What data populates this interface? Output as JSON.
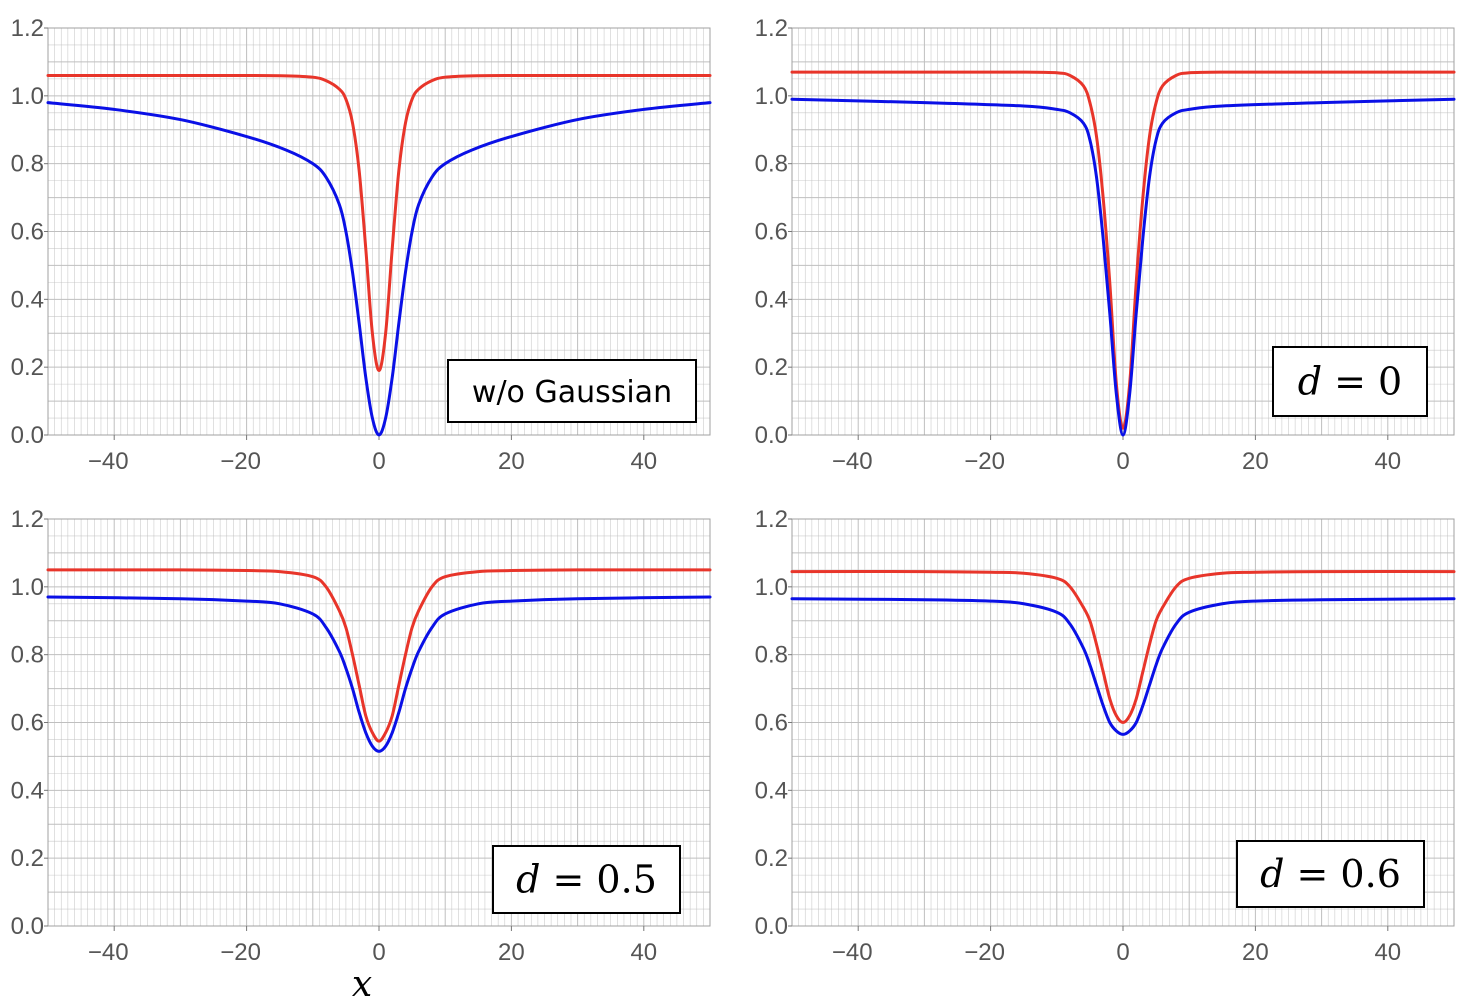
{
  "colors": {
    "red_series": "#e8352a",
    "blue_series": "#0a10e6",
    "grid": "#bfbfbf",
    "frame": "#a0a0a0"
  },
  "x_axis_label": "x",
  "chart_data": [
    {
      "type": "line",
      "annotation": "w/o Gaussian",
      "xlim": [
        -50,
        50
      ],
      "ylim": [
        0,
        1.2
      ],
      "xticks": [
        "−40",
        "−20",
        "0",
        "20",
        "40"
      ],
      "yticks": [
        "0.0",
        "0.2",
        "0.4",
        "0.6",
        "0.8",
        "1.0",
        "1.2"
      ],
      "series": [
        {
          "color": "red",
          "x": [
            -50,
            -40,
            -30,
            -20,
            -14,
            -10,
            -8,
            -6,
            -5,
            -4,
            -3,
            -2,
            -1,
            0,
            1,
            2,
            3,
            4,
            5,
            6,
            8,
            10,
            14,
            20,
            30,
            40,
            50
          ],
          "y": [
            1.06,
            1.06,
            1.06,
            1.06,
            1.059,
            1.055,
            1.045,
            1.02,
            0.99,
            0.92,
            0.78,
            0.55,
            0.3,
            0.19,
            0.3,
            0.55,
            0.78,
            0.92,
            0.99,
            1.02,
            1.045,
            1.055,
            1.059,
            1.06,
            1.06,
            1.06,
            1.06
          ]
        },
        {
          "color": "blue",
          "x": [
            -50,
            -40,
            -30,
            -20,
            -14,
            -10,
            -8,
            -6,
            -5,
            -4,
            -3,
            -2,
            -1,
            0,
            1,
            2,
            3,
            4,
            5,
            6,
            8,
            10,
            14,
            20,
            30,
            40,
            50
          ],
          "y": [
            0.98,
            0.96,
            0.93,
            0.88,
            0.84,
            0.8,
            0.76,
            0.68,
            0.6,
            0.48,
            0.33,
            0.17,
            0.05,
            0.0,
            0.05,
            0.17,
            0.33,
            0.48,
            0.6,
            0.68,
            0.76,
            0.8,
            0.84,
            0.88,
            0.93,
            0.96,
            0.98
          ]
        }
      ]
    },
    {
      "type": "line",
      "annotation": "d = 0",
      "xlim": [
        -50,
        50
      ],
      "ylim": [
        0,
        1.2
      ],
      "xticks": [
        "−40",
        "−20",
        "0",
        "20",
        "40"
      ],
      "yticks": [
        "0.0",
        "0.2",
        "0.4",
        "0.6",
        "0.8",
        "1.0",
        "1.2"
      ],
      "series": [
        {
          "color": "red",
          "x": [
            -50,
            -30,
            -15,
            -10,
            -8,
            -6,
            -5,
            -4,
            -3,
            -2,
            -1,
            0,
            1,
            2,
            3,
            4,
            5,
            6,
            8,
            10,
            15,
            30,
            50
          ],
          "y": [
            1.07,
            1.07,
            1.07,
            1.068,
            1.06,
            1.03,
            0.98,
            0.88,
            0.7,
            0.45,
            0.15,
            0.02,
            0.15,
            0.45,
            0.7,
            0.88,
            0.98,
            1.03,
            1.06,
            1.068,
            1.07,
            1.07,
            1.07
          ]
        },
        {
          "color": "blue",
          "x": [
            -50,
            -30,
            -15,
            -10,
            -8,
            -6,
            -5,
            -4,
            -3,
            -2,
            -1,
            0,
            1,
            2,
            3,
            4,
            5,
            6,
            8,
            10,
            15,
            30,
            50
          ],
          "y": [
            0.99,
            0.98,
            0.97,
            0.96,
            0.95,
            0.92,
            0.87,
            0.76,
            0.58,
            0.36,
            0.12,
            0.0,
            0.12,
            0.36,
            0.58,
            0.76,
            0.87,
            0.92,
            0.95,
            0.96,
            0.97,
            0.98,
            0.99
          ]
        }
      ]
    },
    {
      "type": "line",
      "annotation": "d = 0.5",
      "xlim": [
        -50,
        50
      ],
      "ylim": [
        0,
        1.2
      ],
      "xticks": [
        "−40",
        "−20",
        "0",
        "20",
        "40"
      ],
      "yticks": [
        "0.0",
        "0.2",
        "0.4",
        "0.6",
        "0.8",
        "1.0",
        "1.2"
      ],
      "series": [
        {
          "color": "red",
          "x": [
            -50,
            -30,
            -20,
            -15,
            -10,
            -8,
            -6,
            -5,
            -4,
            -3,
            -2,
            -1,
            0,
            1,
            2,
            3,
            4,
            5,
            6,
            8,
            10,
            15,
            20,
            30,
            50
          ],
          "y": [
            1.05,
            1.05,
            1.048,
            1.045,
            1.03,
            1.0,
            0.93,
            0.88,
            0.8,
            0.71,
            0.62,
            0.57,
            0.545,
            0.57,
            0.62,
            0.71,
            0.8,
            0.88,
            0.93,
            1.0,
            1.03,
            1.045,
            1.048,
            1.05,
            1.05
          ]
        },
        {
          "color": "blue",
          "x": [
            -50,
            -30,
            -20,
            -15,
            -10,
            -8,
            -6,
            -5,
            -4,
            -3,
            -2,
            -1,
            0,
            1,
            2,
            3,
            4,
            5,
            6,
            8,
            10,
            15,
            20,
            30,
            50
          ],
          "y": [
            0.97,
            0.965,
            0.958,
            0.95,
            0.92,
            0.88,
            0.81,
            0.76,
            0.7,
            0.63,
            0.57,
            0.53,
            0.515,
            0.53,
            0.57,
            0.63,
            0.7,
            0.76,
            0.81,
            0.88,
            0.92,
            0.95,
            0.958,
            0.965,
            0.97
          ]
        }
      ]
    },
    {
      "type": "line",
      "annotation": "d = 0.6",
      "xlim": [
        -50,
        50
      ],
      "ylim": [
        0,
        1.2
      ],
      "xticks": [
        "−40",
        "−20",
        "0",
        "20",
        "40"
      ],
      "yticks": [
        "0.0",
        "0.2",
        "0.4",
        "0.6",
        "0.8",
        "1.0",
        "1.2"
      ],
      "series": [
        {
          "color": "red",
          "x": [
            -50,
            -30,
            -20,
            -15,
            -10,
            -8,
            -6,
            -5,
            -4,
            -3,
            -2,
            -1,
            0,
            1,
            2,
            3,
            4,
            5,
            6,
            8,
            10,
            15,
            20,
            30,
            50
          ],
          "y": [
            1.045,
            1.045,
            1.043,
            1.04,
            1.025,
            1.0,
            0.94,
            0.9,
            0.83,
            0.75,
            0.67,
            0.62,
            0.6,
            0.62,
            0.67,
            0.75,
            0.83,
            0.9,
            0.94,
            1.0,
            1.025,
            1.04,
            1.043,
            1.045,
            1.045
          ]
        },
        {
          "color": "blue",
          "x": [
            -50,
            -30,
            -20,
            -15,
            -10,
            -8,
            -6,
            -5,
            -4,
            -3,
            -2,
            -1,
            0,
            1,
            2,
            3,
            4,
            5,
            6,
            8,
            10,
            15,
            20,
            30,
            50
          ],
          "y": [
            0.965,
            0.962,
            0.958,
            0.95,
            0.925,
            0.89,
            0.82,
            0.77,
            0.71,
            0.65,
            0.6,
            0.575,
            0.565,
            0.575,
            0.6,
            0.65,
            0.71,
            0.77,
            0.82,
            0.89,
            0.925,
            0.95,
            0.958,
            0.962,
            0.965
          ]
        }
      ]
    }
  ]
}
